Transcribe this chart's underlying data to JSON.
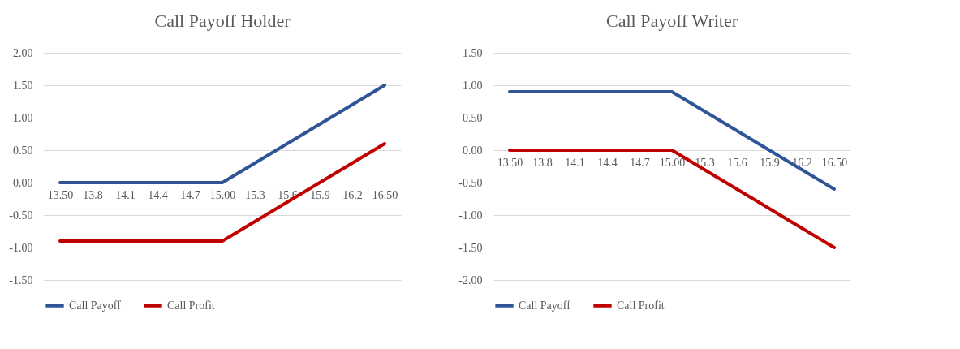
{
  "chart_data": [
    {
      "type": "line",
      "title": "Call Payoff Holder",
      "categories": [
        "13.50",
        "13.8",
        "14.1",
        "14.4",
        "14.7",
        "15.00",
        "15.3",
        "15.6",
        "15.9",
        "16.2",
        "16.50"
      ],
      "series": [
        {
          "name": "Call Payoff",
          "color": "#2f5597",
          "values": [
            0,
            0,
            0,
            0,
            0,
            0,
            0.3,
            0.6,
            0.9,
            1.2,
            1.5
          ]
        },
        {
          "name": "Call Profit",
          "color": "#c00000",
          "values": [
            -0.9,
            -0.9,
            -0.9,
            -0.9,
            -0.9,
            -0.9,
            -0.6,
            -0.3,
            0,
            0.3,
            0.6
          ]
        }
      ],
      "ylim": [
        -1.5,
        2
      ],
      "yticks": [
        {
          "value": -1.5,
          "label": "-1.50"
        },
        {
          "value": -1,
          "label": "-1.00"
        },
        {
          "value": -0.5,
          "label": "-0.50"
        },
        {
          "value": 0,
          "label": "0.00"
        },
        {
          "value": 0.5,
          "label": "0.50"
        },
        {
          "value": 1,
          "label": "1.00"
        },
        {
          "value": 1.5,
          "label": "1.50"
        },
        {
          "value": 2,
          "label": "2.00"
        }
      ],
      "grid": "y",
      "legend": "bottom",
      "marker": "none",
      "line_style": "solid"
    },
    {
      "type": "line",
      "title": "Call Payoff Writer",
      "categories": [
        "13.50",
        "13.8",
        "14.1",
        "14.4",
        "14.7",
        "15.00",
        "15.3",
        "15.6",
        "15.9",
        "16.2",
        "16.50"
      ],
      "series": [
        {
          "name": "Call Payoff",
          "color": "#2f5597",
          "values": [
            0.9,
            0.9,
            0.9,
            0.9,
            0.9,
            0.9,
            0.6,
            0.3,
            0,
            -0.3,
            -0.6
          ]
        },
        {
          "name": "Call Profit",
          "color": "#c00000",
          "values": [
            0,
            0,
            0,
            0,
            0,
            0,
            -0.3,
            -0.6,
            -0.9,
            -1.2,
            -1.5
          ]
        }
      ],
      "ylim": [
        -2,
        1.5
      ],
      "yticks": [
        {
          "value": -2,
          "label": "-2.00"
        },
        {
          "value": -1.5,
          "label": "-1.50"
        },
        {
          "value": -1,
          "label": "-1.00"
        },
        {
          "value": -0.5,
          "label": "-0.50"
        },
        {
          "value": 0,
          "label": "0.00"
        },
        {
          "value": 0.5,
          "label": "0.50"
        },
        {
          "value": 1,
          "label": "1.00"
        },
        {
          "value": 1.5,
          "label": "1.50"
        }
      ],
      "grid": "y",
      "legend": "bottom",
      "marker": "none",
      "line_style": "solid"
    }
  ]
}
